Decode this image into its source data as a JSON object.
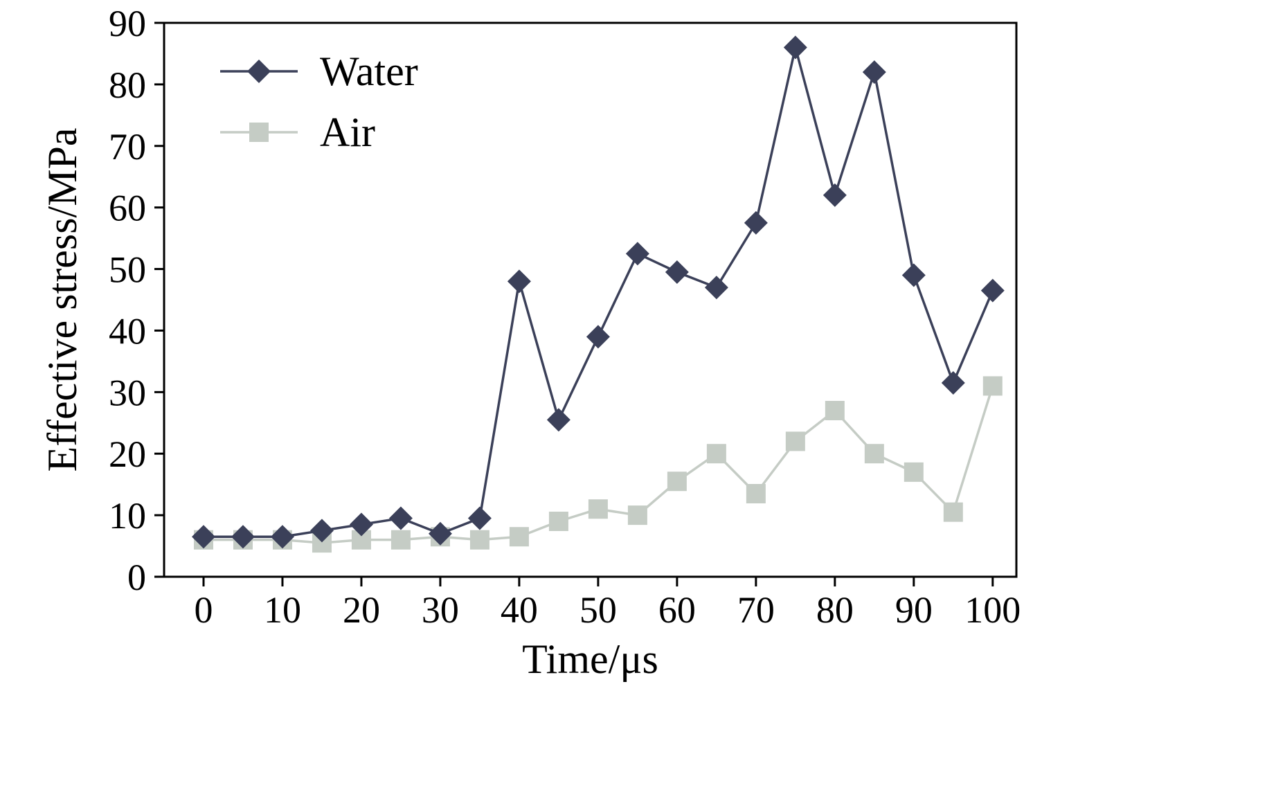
{
  "chart_data": {
    "type": "line",
    "title": "",
    "xlabel": "Time/μs",
    "ylabel": "Effective stress/MPa",
    "xlim": [
      0,
      100
    ],
    "ylim": [
      0,
      90
    ],
    "xticks": [
      0,
      10,
      20,
      30,
      40,
      50,
      60,
      70,
      80,
      90,
      100
    ],
    "yticks": [
      0,
      10,
      20,
      30,
      40,
      50,
      60,
      70,
      80,
      90
    ],
    "grid": false,
    "legend_position": "top-left",
    "x": [
      0,
      5,
      10,
      15,
      20,
      25,
      30,
      35,
      40,
      45,
      50,
      55,
      60,
      65,
      70,
      75,
      80,
      85,
      90,
      95,
      100
    ],
    "series": [
      {
        "name": "Water",
        "marker": "diamond",
        "color": "#3b4059",
        "values": [
          6.5,
          6.5,
          6.5,
          7.5,
          8.5,
          9.5,
          7.0,
          9.5,
          48.0,
          25.5,
          39.0,
          52.5,
          49.5,
          47.0,
          57.5,
          86.0,
          62.0,
          82.0,
          49.0,
          31.5,
          46.5
        ]
      },
      {
        "name": "Air",
        "marker": "square",
        "color": "#c5ccc5",
        "values": [
          6.0,
          6.0,
          6.0,
          5.5,
          6.0,
          6.0,
          6.5,
          6.0,
          6.5,
          9.0,
          11.0,
          10.0,
          15.5,
          20.0,
          13.5,
          22.0,
          27.0,
          20.0,
          17.0,
          10.5,
          31.0
        ]
      }
    ],
    "axis_color": "#000000"
  }
}
